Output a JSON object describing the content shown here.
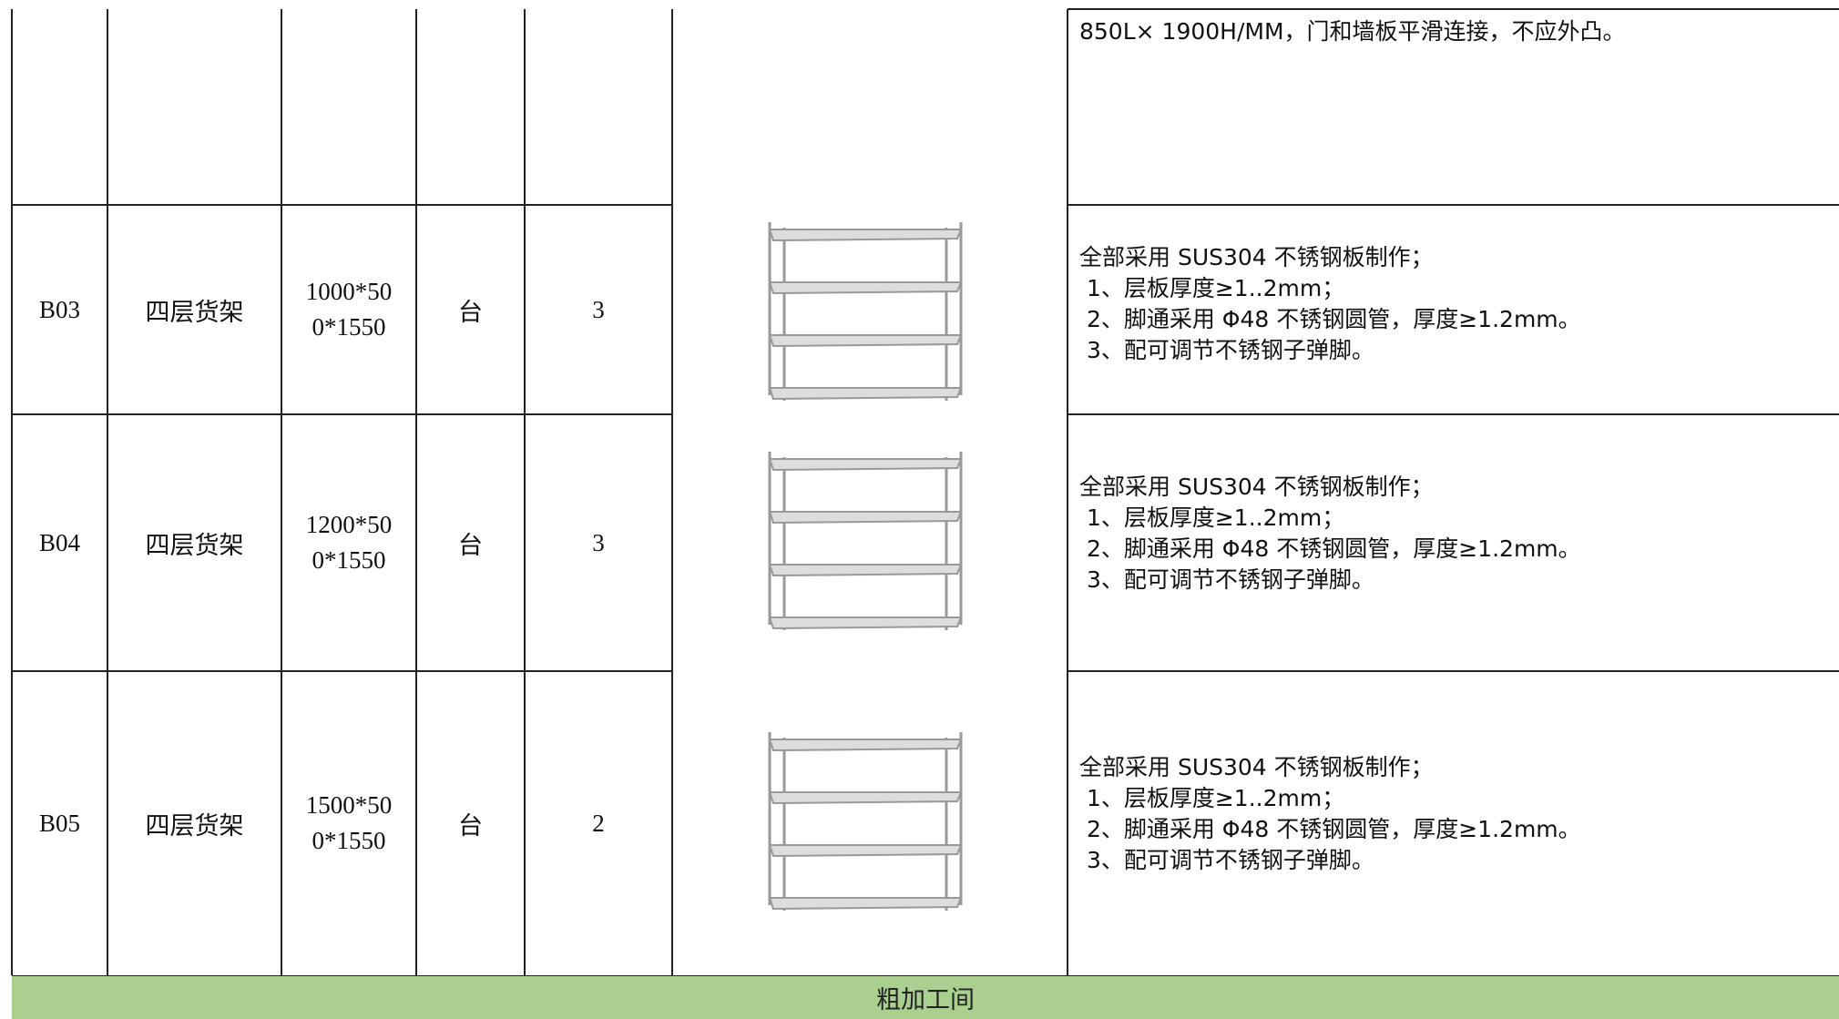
{
  "table": {
    "top_row": {
      "description": [
        "850L× 1900H/MM，门和墙板平滑连接，不应外凸。"
      ]
    },
    "rows": [
      {
        "code": "B03",
        "name": "四层货架",
        "spec": "1000*500*1550",
        "unit": "台",
        "qty": "3",
        "description": [
          "全部采用 SUS304 不锈钢板制作；",
          " 1、层板厚度≥1..2mm；",
          " 2、脚通采用 Φ48 不锈钢圆管，厚度≥1.2mm。",
          " 3、配可调节不锈钢子弹脚。"
        ]
      },
      {
        "code": "B04",
        "name": "四层货架",
        "spec": "1200*500*1550",
        "unit": "台",
        "qty": "3",
        "description": [
          "全部采用 SUS304 不锈钢板制作；",
          " 1、层板厚度≥1..2mm；",
          " 2、脚通采用 Φ48 不锈钢圆管，厚度≥1.2mm。",
          " 3、配可调节不锈钢子弹脚。"
        ]
      },
      {
        "code": "B05",
        "name": "四层货架",
        "spec": "1500*500*1550",
        "unit": "台",
        "qty": "2",
        "description": [
          "全部采用 SUS304 不锈钢板制作；",
          " 1、层板厚度≥1..2mm；",
          " 2、脚通采用 Φ48 不锈钢圆管，厚度≥1.2mm。",
          " 3、配可调节不锈钢子弹脚。"
        ]
      }
    ],
    "section": "粗加工间"
  }
}
